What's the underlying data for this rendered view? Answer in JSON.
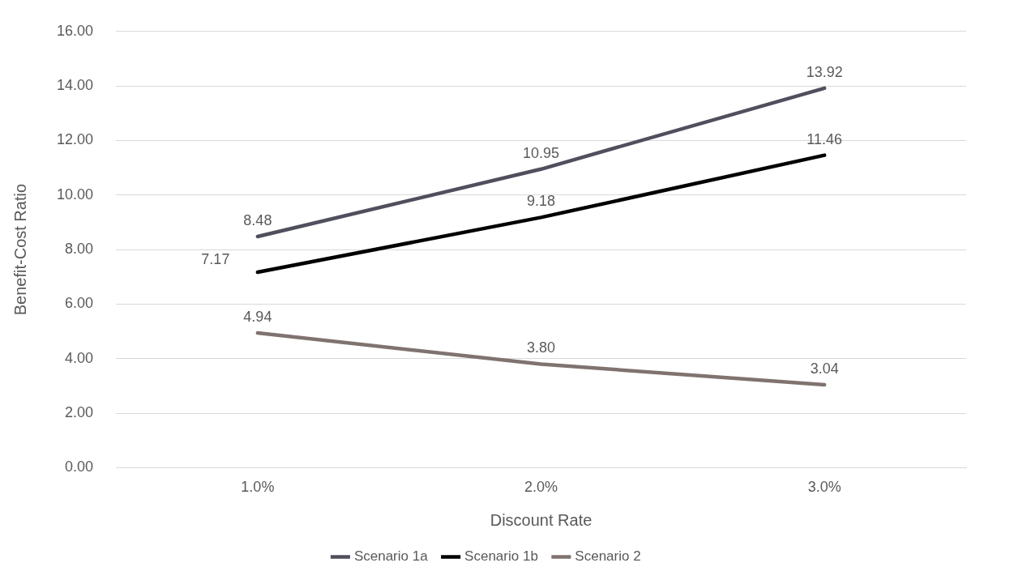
{
  "chart_data": {
    "type": "line",
    "xlabel": "Discount Rate",
    "ylabel": "Benefit-Cost Ratio",
    "categories": [
      "1.0%",
      "2.0%",
      "3.0%"
    ],
    "series": [
      {
        "name": "Scenario 1a",
        "color": "#4f4f5e",
        "values": [
          8.48,
          10.95,
          13.92
        ]
      },
      {
        "name": "Scenario 1b",
        "color": "#000000",
        "values": [
          7.17,
          9.18,
          11.46
        ]
      },
      {
        "name": "Scenario 2",
        "color": "#80736f",
        "values": [
          4.94,
          3.8,
          3.04
        ]
      }
    ],
    "ylim": [
      0,
      16
    ],
    "yticks": [
      {
        "value": 0,
        "label": "0.00"
      },
      {
        "value": 2,
        "label": "2.00"
      },
      {
        "value": 4,
        "label": "4.00"
      },
      {
        "value": 6,
        "label": "6.00"
      },
      {
        "value": 8,
        "label": "8.00"
      },
      {
        "value": 10,
        "label": "10.00"
      },
      {
        "value": 12,
        "label": "12.00"
      },
      {
        "value": 14,
        "label": "14.00"
      },
      {
        "value": 16,
        "label": "16.00"
      }
    ],
    "grid": "y",
    "legend": "bottom",
    "marker": "none",
    "line_style": "solid",
    "value_labels": [
      [
        "8.48",
        "10.95",
        "13.92"
      ],
      [
        "7.17",
        "9.18",
        "11.46"
      ],
      [
        "4.94",
        "3.80",
        "3.04"
      ]
    ]
  }
}
